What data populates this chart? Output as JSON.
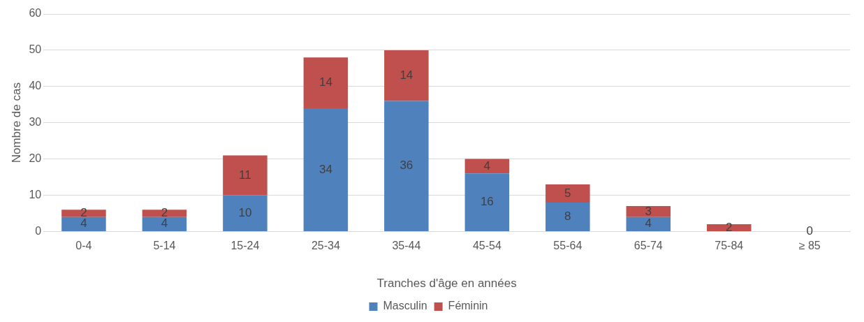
{
  "chart_data": {
    "type": "bar",
    "stacked": true,
    "xlabel": "Tranches d'âge en années",
    "ylabel": "Nombre de cas",
    "categories": [
      "0-4",
      "5-14",
      "15-24",
      "25-34",
      "35-44",
      "45-54",
      "55-64",
      "65-74",
      "75-84",
      "≥ 85"
    ],
    "series": [
      {
        "name": "Masculin",
        "color": "#4f81bd",
        "values": [
          4,
          4,
          10,
          34,
          36,
          16,
          8,
          4,
          0,
          0
        ],
        "value_labels": [
          "4",
          "4",
          "10",
          "34",
          "36",
          "16",
          "8",
          "4",
          null,
          "0"
        ]
      },
      {
        "name": "Féminin",
        "color": "#c0504d",
        "values": [
          2,
          2,
          11,
          14,
          14,
          4,
          5,
          3,
          2,
          0
        ],
        "value_labels": [
          "2",
          "2",
          "11",
          "14",
          "14",
          "4",
          "5",
          "3",
          "2",
          null
        ]
      }
    ],
    "ylim": [
      0,
      60
    ],
    "yticks": [
      0,
      10,
      20,
      30,
      40,
      50,
      60
    ],
    "grid": "y",
    "legend": "bottom"
  }
}
